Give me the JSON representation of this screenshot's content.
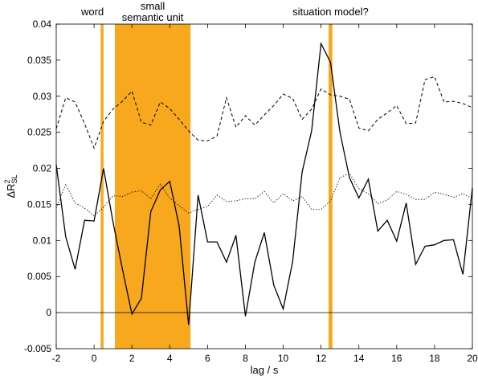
{
  "chart_data": {
    "type": "line",
    "xlabel": "lag / s",
    "ylabel_main": "ΔR",
    "ylabel_sup": "2",
    "ylabel_sub": "SL",
    "xlim": [
      -2,
      20
    ],
    "ylim": [
      -0.005,
      0.04
    ],
    "xticks": [
      "-2",
      "0",
      "2",
      "4",
      "6",
      "8",
      "10",
      "12",
      "14",
      "16",
      "18",
      "20"
    ],
    "yticks": [
      "-0.005",
      "0",
      "0.005",
      "0.01",
      "0.015",
      "0.02",
      "0.025",
      "0.03",
      "0.035",
      "0.04"
    ],
    "highlight_color": "#f7a81c",
    "highlights": [
      {
        "label": "word",
        "x0": 0.35,
        "x1": 0.5
      },
      {
        "label_line1": "small",
        "label_line2": "semantic unit",
        "x0": 1.1,
        "x1": 5.1
      },
      {
        "label": "situation model?",
        "x0": 12.4,
        "x1": 12.6
      }
    ],
    "zero_line": 0,
    "series": [
      {
        "style": "solid",
        "x": [
          -2,
          -1.5,
          -1,
          -0.5,
          0,
          0.5,
          1,
          1.5,
          2,
          2.5,
          3,
          3.5,
          4,
          4.5,
          5,
          5.5,
          6,
          6.5,
          7,
          7.5,
          8,
          8.5,
          9,
          9.5,
          10,
          10.5,
          11,
          11.5,
          12,
          12.5,
          13,
          13.5,
          14,
          14.5,
          15,
          15.5,
          16,
          16.5,
          17,
          17.5,
          18,
          18.5,
          19,
          19.5,
          20
        ],
        "values": [
          0.0205,
          0.0105,
          0.006,
          0.0128,
          0.0127,
          0.02,
          0.0126,
          0.006,
          -0.0002,
          0.002,
          0.014,
          0.017,
          0.0182,
          0.012,
          -0.0017,
          0.0163,
          0.0098,
          0.0098,
          0.007,
          0.0107,
          -0.0005,
          0.007,
          0.0111,
          0.0038,
          0.0005,
          0.0071,
          0.0195,
          0.0252,
          0.0373,
          0.0347,
          0.025,
          0.0187,
          0.0159,
          0.0185,
          0.0113,
          0.0128,
          0.0099,
          0.0152,
          0.0067,
          0.0092,
          0.0094,
          0.01,
          0.0101,
          0.0053,
          0.0173
        ]
      },
      {
        "style": "dashed",
        "x": [
          -2,
          -1.5,
          -1,
          -0.5,
          0,
          0.5,
          1,
          1.5,
          2,
          2.5,
          3,
          3.5,
          4,
          4.5,
          5,
          5.5,
          6,
          6.5,
          7,
          7.5,
          8,
          8.5,
          9,
          9.5,
          10,
          10.5,
          11,
          11.5,
          12,
          12.5,
          13,
          13.5,
          14,
          14.5,
          15,
          15.5,
          16,
          16.5,
          17,
          17.5,
          18,
          18.5,
          19,
          19.5,
          20
        ],
        "values": [
          0.0255,
          0.0298,
          0.0292,
          0.0262,
          0.0228,
          0.0265,
          0.0282,
          0.0293,
          0.0307,
          0.0264,
          0.026,
          0.0292,
          0.0283,
          0.0268,
          0.0252,
          0.0239,
          0.0238,
          0.0245,
          0.0298,
          0.0257,
          0.0273,
          0.026,
          0.0274,
          0.0287,
          0.0303,
          0.0297,
          0.0268,
          0.0282,
          0.031,
          0.0302,
          0.03,
          0.0296,
          0.0256,
          0.0252,
          0.0268,
          0.0277,
          0.0287,
          0.0262,
          0.0263,
          0.0323,
          0.0327,
          0.0292,
          0.0293,
          0.029,
          0.0284
        ]
      },
      {
        "style": "dotted",
        "x": [
          -2,
          -1.5,
          -1,
          -0.5,
          0,
          0.5,
          1,
          1.5,
          2,
          2.5,
          3,
          3.5,
          4,
          4.5,
          5,
          5.5,
          6,
          6.5,
          7,
          7.5,
          8,
          8.5,
          9,
          9.5,
          10,
          10.5,
          11,
          11.5,
          12,
          12.5,
          13,
          13.5,
          14,
          14.5,
          15,
          15.5,
          16,
          16.5,
          17,
          17.5,
          18,
          18.5,
          19,
          19.5,
          20
        ],
        "values": [
          0.0145,
          0.0178,
          0.0152,
          0.0145,
          0.0134,
          0.0146,
          0.0162,
          0.0161,
          0.0167,
          0.0169,
          0.0158,
          0.0178,
          0.0159,
          0.0148,
          0.0138,
          0.0143,
          0.0147,
          0.0163,
          0.0154,
          0.0155,
          0.0158,
          0.0158,
          0.0168,
          0.0152,
          0.0165,
          0.0155,
          0.0161,
          0.0143,
          0.0143,
          0.0155,
          0.0187,
          0.0193,
          0.0172,
          0.0165,
          0.0151,
          0.0156,
          0.0168,
          0.0164,
          0.0157,
          0.0157,
          0.0167,
          0.0164,
          0.016,
          0.0165,
          0.0158
        ]
      }
    ]
  }
}
